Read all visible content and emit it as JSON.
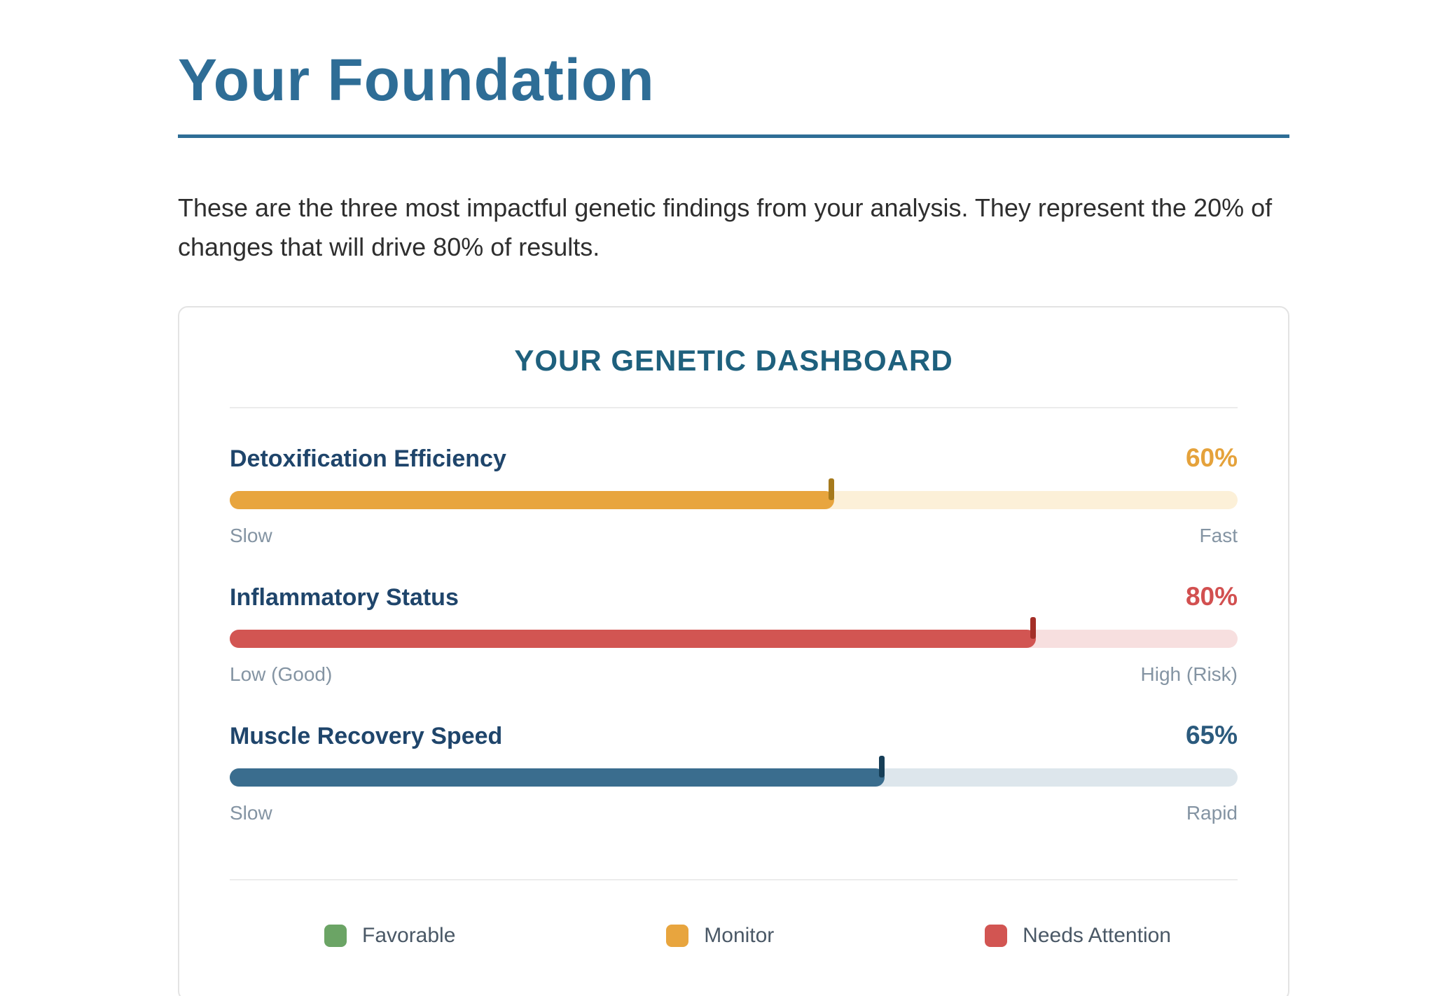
{
  "page": {
    "title": "Your Foundation",
    "intro": "These are the three most impactful genetic findings from your analysis. They represent the 20% of changes that will drive 80% of results."
  },
  "dashboard": {
    "title": "YOUR GENETIC DASHBOARD",
    "metrics": [
      {
        "label": "Detoxification Efficiency",
        "value": 60,
        "value_label": "60%",
        "value_color": "#e5a23b",
        "color": "#e8a53e",
        "track_color": "#fcf0d8",
        "tick_color": "#a67a1d",
        "left_label": "Slow",
        "right_label": "Fast"
      },
      {
        "label": "Inflammatory Status",
        "value": 80,
        "value_label": "80%",
        "value_color": "#d25050",
        "color": "#d25552",
        "track_color": "#f7dfdf",
        "tick_color": "#a42f28",
        "left_label": "Low (Good)",
        "right_label": "High (Risk)"
      },
      {
        "label": "Muscle Recovery Speed",
        "value": 65,
        "value_label": "65%",
        "value_color": "#2b5a7d",
        "color": "#3a6d8e",
        "track_color": "#dde6ec",
        "tick_color": "#163e57",
        "left_label": "Slow",
        "right_label": "Rapid"
      }
    ],
    "legend": [
      {
        "label": "Favorable",
        "color": "#6ba465"
      },
      {
        "label": "Monitor",
        "color": "#e8a53e"
      },
      {
        "label": "Needs Attention",
        "color": "#d25552"
      }
    ]
  },
  "chart_data": {
    "type": "bar",
    "orientation": "horizontal",
    "title": "YOUR GENETIC DASHBOARD",
    "categories": [
      "Detoxification Efficiency",
      "Inflammatory Status",
      "Muscle Recovery Speed"
    ],
    "values": [
      60,
      80,
      65
    ],
    "value_labels": [
      "60%",
      "80%",
      "65%"
    ],
    "scale_labels": [
      [
        "Slow",
        "Fast"
      ],
      [
        "Low (Good)",
        "High (Risk)"
      ],
      [
        "Slow",
        "Rapid"
      ]
    ],
    "xlim": [
      0,
      100
    ],
    "grid": false,
    "legend": [
      "Favorable",
      "Monitor",
      "Needs Attention"
    ],
    "legend_position": "bottom",
    "series_colors": [
      "#e8a53e",
      "#d25552",
      "#3a6d8e"
    ]
  }
}
